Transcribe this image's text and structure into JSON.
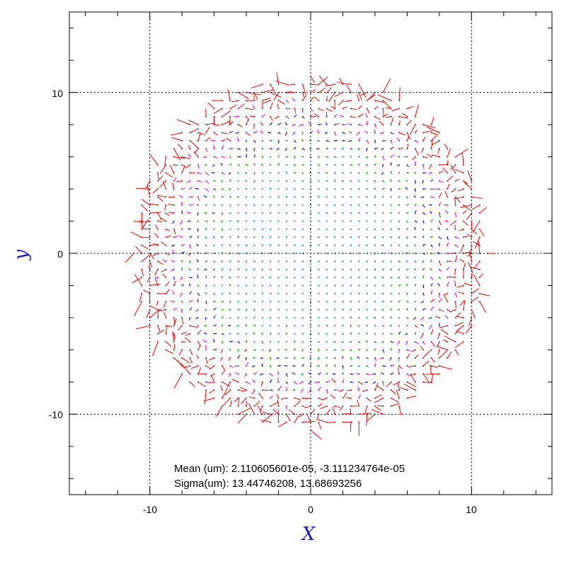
{
  "chart_data": {
    "type": "scatter",
    "subtype": "vector-field",
    "xlabel": "X",
    "ylabel": "y",
    "xlim": [
      -15,
      15
    ],
    "ylim": [
      -15,
      15
    ],
    "xticks": [
      -10,
      0,
      10
    ],
    "yticks": [
      -10,
      0,
      10
    ],
    "xtick_labels": [
      "-10",
      "0",
      "10"
    ],
    "ytick_labels": [
      "-10",
      "0",
      "10"
    ],
    "grid": true,
    "grid_style": "dotted",
    "field": {
      "region": "disk",
      "center": [
        0,
        0
      ],
      "radius": 11,
      "grid_step": 0.5,
      "marker": "x",
      "vector_colors_by_magnitude": [
        "#00cccc",
        "#00cc00",
        "#0000ff",
        "#ff00ff",
        "#ff0000"
      ],
      "note": "small residual vectors at each grid point; largest (red) vectors near the disk edge"
    },
    "annotations": [
      {
        "label": "Mean (um):",
        "value": "2.110605601e-05, -3.111234764e-05"
      },
      {
        "label": "Sigma(um):",
        "value": "13.44746208, 13.68693256"
      }
    ]
  },
  "colors": {
    "axis_title": "#1a1acc",
    "frame": "#000000",
    "grid": "#000000"
  }
}
